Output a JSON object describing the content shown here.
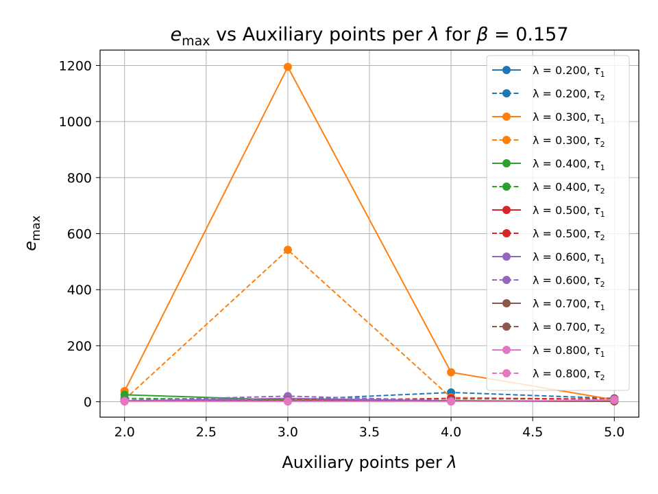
{
  "chart_data": {
    "type": "line",
    "title": {
      "e": "e",
      "e_sub": "max",
      "middle": " vs Auxiliary points per ",
      "lambda": "λ",
      "for": " for ",
      "beta": "β",
      "eq": " = 0.157"
    },
    "xlabel": {
      "text": "Auxiliary points per ",
      "sym": "λ"
    },
    "ylabel": {
      "text": "e",
      "sub": "max"
    },
    "xlim": [
      1.85,
      5.15
    ],
    "ylim": [
      -55,
      1255
    ],
    "xticks": [
      2.0,
      2.5,
      3.0,
      3.5,
      4.0,
      4.5,
      5.0
    ],
    "xtick_labels": [
      "2.0",
      "2.5",
      "3.0",
      "3.5",
      "4.0",
      "4.5",
      "5.0"
    ],
    "yticks": [
      0,
      200,
      400,
      600,
      800,
      1000,
      1200
    ],
    "ytick_labels": [
      "0",
      "200",
      "400",
      "600",
      "800",
      "1000",
      "1200"
    ],
    "grid": true,
    "legend_position": "top-right",
    "x": [
      2.0,
      3.0,
      4.0,
      5.0
    ],
    "series": [
      {
        "lam": "λ = 0.200, ",
        "tau": "τ",
        "tau_sub": "1",
        "color": "#1f77b4",
        "dash": false,
        "values": [
          2,
          5,
          3,
          2
        ]
      },
      {
        "lam": "λ = 0.200, ",
        "tau": "τ",
        "tau_sub": "2",
        "color": "#1f77b4",
        "dash": true,
        "values": [
          3,
          7,
          33,
          12
        ]
      },
      {
        "lam": "λ = 0.300, ",
        "tau": "τ",
        "tau_sub": "1",
        "color": "#ff7f0e",
        "dash": false,
        "values": [
          38,
          1195,
          105,
          7
        ]
      },
      {
        "lam": "λ = 0.300, ",
        "tau": "τ",
        "tau_sub": "2",
        "color": "#ff7f0e",
        "dash": true,
        "values": [
          8,
          542,
          15,
          8
        ]
      },
      {
        "lam": "λ = 0.400, ",
        "tau": "τ",
        "tau_sub": "1",
        "color": "#2ca02c",
        "dash": false,
        "values": [
          25,
          6,
          4,
          3
        ]
      },
      {
        "lam": "λ = 0.400, ",
        "tau": "τ",
        "tau_sub": "2",
        "color": "#2ca02c",
        "dash": true,
        "values": [
          12,
          8,
          5,
          4
        ]
      },
      {
        "lam": "λ = 0.500, ",
        "tau": "τ",
        "tau_sub": "1",
        "color": "#d62728",
        "dash": false,
        "values": [
          3,
          4,
          3,
          2
        ]
      },
      {
        "lam": "λ = 0.500, ",
        "tau": "τ",
        "tau_sub": "2",
        "color": "#d62728",
        "dash": true,
        "values": [
          4,
          5,
          12,
          10
        ]
      },
      {
        "lam": "λ = 0.600, ",
        "tau": "τ",
        "tau_sub": "1",
        "color": "#9467bd",
        "dash": false,
        "values": [
          3,
          12,
          3,
          2
        ]
      },
      {
        "lam": "λ = 0.600, ",
        "tau": "τ",
        "tau_sub": "2",
        "color": "#9467bd",
        "dash": true,
        "values": [
          5,
          20,
          4,
          3
        ]
      },
      {
        "lam": "λ = 0.700, ",
        "tau": "τ",
        "tau_sub": "1",
        "color": "#8c564b",
        "dash": false,
        "values": [
          2,
          3,
          2,
          2
        ]
      },
      {
        "lam": "λ = 0.700, ",
        "tau": "τ",
        "tau_sub": "2",
        "color": "#8c564b",
        "dash": true,
        "values": [
          3,
          4,
          3,
          2
        ]
      },
      {
        "lam": "λ = 0.800, ",
        "tau": "τ",
        "tau_sub": "1",
        "color": "#e377c2",
        "dash": false,
        "values": [
          1,
          1,
          1,
          6
        ]
      },
      {
        "lam": "λ = 0.800, ",
        "tau": "τ",
        "tau_sub": "2",
        "color": "#e377c2",
        "dash": true,
        "values": [
          2,
          2,
          1,
          8
        ]
      }
    ]
  }
}
